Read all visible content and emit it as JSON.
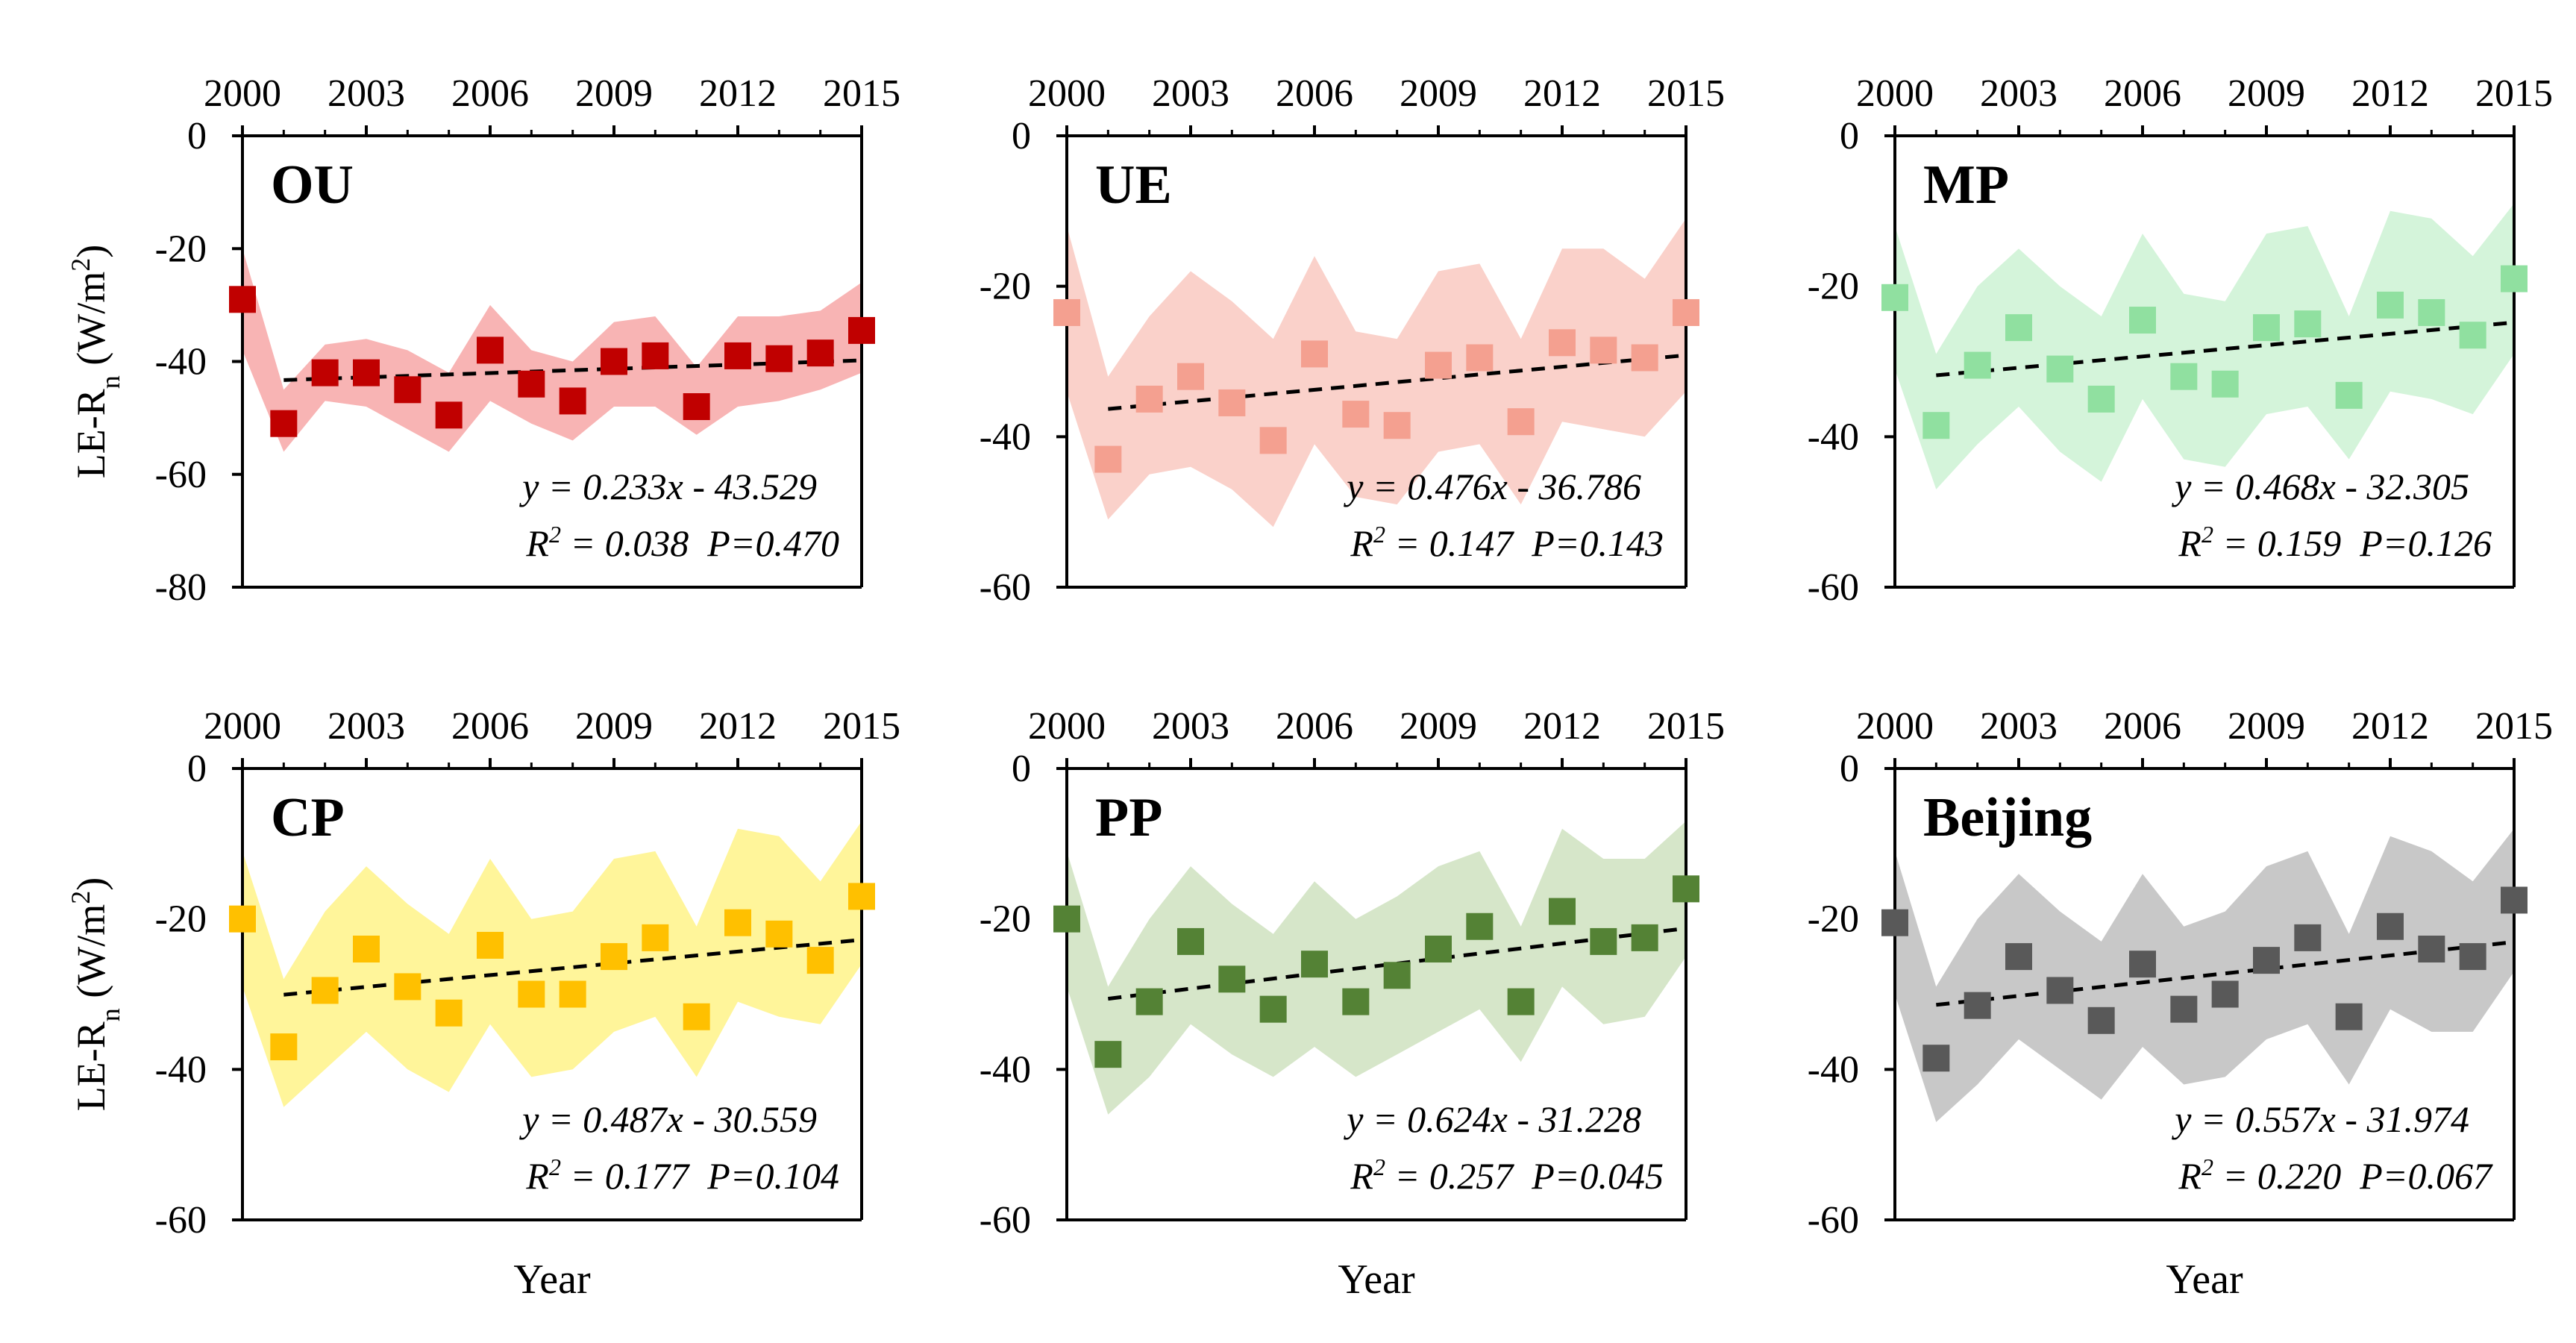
{
  "chart_data": [
    {
      "type": "scatter",
      "title": "OU",
      "color": "#C00000",
      "band_color": "#F8B4B4",
      "x": [
        2000,
        2001,
        2002,
        2003,
        2004,
        2005,
        2006,
        2007,
        2008,
        2009,
        2010,
        2011,
        2012,
        2013,
        2014,
        2015
      ],
      "values": [
        -29,
        -51,
        -42,
        -42,
        -45,
        -49.5,
        -38,
        -44,
        -47,
        -40,
        -39,
        -48,
        -39,
        -39.5,
        -38.5,
        -34.5
      ],
      "band_upper": [
        -20,
        -45,
        -37,
        -36,
        -38,
        -42,
        -30,
        -38,
        -40,
        -33,
        -32,
        -41,
        -32,
        -32,
        -31,
        -26
      ],
      "band_lower": [
        -38,
        -56,
        -47,
        -48,
        -52,
        -56,
        -47,
        -51,
        -54,
        -48,
        -48,
        -53,
        -48,
        -47,
        -45,
        -42
      ],
      "trend": {
        "slope": 0.233,
        "intercept": -43.529
      },
      "equation": "y = 0.233x - 43.529",
      "r2_label": "R",
      "r2_sup": "2",
      "r2_value": " = 0.038",
      "p_value": "P=0.470",
      "xlabel": "",
      "ylabel": "LE-R",
      "ylabel_sub": "n",
      "ylabel_units": " (W/m",
      "ylabel_sup": "2",
      "ylabel_close": ")",
      "ylim": [
        -80,
        0
      ],
      "y_ticks": [
        "0",
        "-20",
        "-40",
        "-60",
        "-80"
      ],
      "x_ticks": [
        "2000",
        "2003",
        "2006",
        "2009",
        "2012",
        "2015"
      ]
    },
    {
      "type": "scatter",
      "title": "UE",
      "color": "#F4A090",
      "band_color": "#FAD1CA",
      "x": [
        2000,
        2001,
        2002,
        2003,
        2004,
        2005,
        2006,
        2007,
        2008,
        2009,
        2010,
        2011,
        2012,
        2013,
        2014,
        2015
      ],
      "values": [
        -23.5,
        -43,
        -35,
        -32,
        -35.5,
        -40.5,
        -29,
        -37,
        -38.5,
        -30.5,
        -29.5,
        -38,
        -27.5,
        -28.5,
        -29.5,
        -23.5
      ],
      "band_upper": [
        -12,
        -32,
        -24,
        -18,
        -22,
        -27,
        -16,
        -26,
        -27,
        -18,
        -17,
        -27,
        -15,
        -15,
        -19,
        -11
      ],
      "band_lower": [
        -34,
        -51,
        -45,
        -44,
        -47,
        -52,
        -41,
        -48,
        -49,
        -42,
        -41,
        -49,
        -38,
        -39,
        -40,
        -34
      ],
      "trend": {
        "slope": 0.476,
        "intercept": -36.786
      },
      "equation": "y = 0.476x - 36.786",
      "r2_label": "R",
      "r2_sup": "2",
      "r2_value": " = 0.147",
      "p_value": "P=0.143",
      "xlabel": "",
      "ylabel": "",
      "ylim": [
        -60,
        0
      ],
      "y_ticks": [
        "0",
        "-20",
        "-40",
        "-60"
      ],
      "x_ticks": [
        "2000",
        "2003",
        "2006",
        "2009",
        "2012",
        "2015"
      ]
    },
    {
      "type": "scatter",
      "title": "MP",
      "color": "#90E0A0",
      "band_color": "#D4F4DA",
      "x": [
        2000,
        2001,
        2002,
        2003,
        2004,
        2005,
        2006,
        2007,
        2008,
        2009,
        2010,
        2011,
        2012,
        2013,
        2014,
        2015
      ],
      "values": [
        -21.5,
        -38.5,
        -30.5,
        -25.5,
        -31,
        -35,
        -24.5,
        -32,
        -33,
        -25.5,
        -25,
        -34.5,
        -22.5,
        -23.5,
        -26.5,
        -19
      ],
      "band_upper": [
        -12,
        -29,
        -20,
        -15,
        -20,
        -24,
        -13,
        -21,
        -22,
        -13,
        -12,
        -24,
        -10,
        -11,
        -16,
        -9
      ],
      "band_lower": [
        -31,
        -47,
        -41,
        -36,
        -42,
        -46,
        -35,
        -43,
        -44,
        -37,
        -36,
        -43,
        -34,
        -35,
        -37,
        -29
      ],
      "trend": {
        "slope": 0.468,
        "intercept": -32.305
      },
      "equation": "y = 0.468x - 32.305",
      "r2_label": "R",
      "r2_sup": "2",
      "r2_value": " = 0.159",
      "p_value": "P=0.126",
      "xlabel": "",
      "ylabel": "",
      "ylim": [
        -60,
        0
      ],
      "y_ticks": [
        "0",
        "-20",
        "-40",
        "-60"
      ],
      "x_ticks": [
        "2000",
        "2003",
        "2006",
        "2009",
        "2012",
        "2015"
      ]
    },
    {
      "type": "scatter",
      "title": "CP",
      "color": "#FFC000",
      "band_color": "#FFF59A",
      "x": [
        2000,
        2001,
        2002,
        2003,
        2004,
        2005,
        2006,
        2007,
        2008,
        2009,
        2010,
        2011,
        2012,
        2013,
        2014,
        2015
      ],
      "values": [
        -20,
        -37,
        -29.5,
        -24,
        -29,
        -32.5,
        -23.5,
        -30,
        -30,
        -25,
        -22.5,
        -33,
        -20.5,
        -22,
        -25.5,
        -17
      ],
      "band_upper": [
        -11,
        -28,
        -19,
        -13,
        -18,
        -22,
        -12,
        -20,
        -19,
        -12,
        -11,
        -21,
        -8,
        -9,
        -15,
        -7
      ],
      "band_lower": [
        -29,
        -45,
        -40,
        -35,
        -40,
        -43,
        -34,
        -41,
        -40,
        -35,
        -33,
        -41,
        -31,
        -33,
        -34,
        -26
      ],
      "trend": {
        "slope": 0.487,
        "intercept": -30.559
      },
      "equation": "y = 0.487x - 30.559",
      "r2_label": "R",
      "r2_sup": "2",
      "r2_value": " = 0.177",
      "p_value": "P=0.104",
      "xlabel": "Year",
      "ylabel": "LE-R",
      "ylabel_sub": "n",
      "ylabel_units": " (W/m",
      "ylabel_sup": "2",
      "ylabel_close": ")",
      "ylim": [
        -60,
        0
      ],
      "y_ticks": [
        "0",
        "-20",
        "-40",
        "-60"
      ],
      "x_ticks": [
        "2000",
        "2003",
        "2006",
        "2009",
        "2012",
        "2015"
      ]
    },
    {
      "type": "scatter",
      "title": "PP",
      "color": "#548235",
      "band_color": "#D6E6C9",
      "x": [
        2000,
        2001,
        2002,
        2003,
        2004,
        2005,
        2006,
        2007,
        2008,
        2009,
        2010,
        2011,
        2012,
        2013,
        2014,
        2015
      ],
      "values": [
        -20,
        -38,
        -31,
        -23,
        -28,
        -32,
        -26,
        -31,
        -27.5,
        -24,
        -21,
        -31,
        -19,
        -23,
        -22.5,
        -16
      ],
      "band_upper": [
        -11,
        -29,
        -20,
        -13,
        -18,
        -22,
        -15,
        -20,
        -17,
        -13,
        -11,
        -21,
        -8,
        -12,
        -12,
        -7
      ],
      "band_lower": [
        -29,
        -46,
        -41,
        -34,
        -38,
        -41,
        -37,
        -41,
        -38,
        -35,
        -32,
        -39,
        -29,
        -34,
        -33,
        -25
      ],
      "trend": {
        "slope": 0.624,
        "intercept": -31.228
      },
      "equation": "y = 0.624x - 31.228",
      "r2_label": "R",
      "r2_sup": "2",
      "r2_value": " = 0.257",
      "p_value": "P=0.045",
      "xlabel": "Year",
      "ylabel": "",
      "ylim": [
        -60,
        0
      ],
      "y_ticks": [
        "0",
        "-20",
        "-40",
        "-60"
      ],
      "x_ticks": [
        "2000",
        "2003",
        "2006",
        "2009",
        "2012",
        "2015"
      ]
    },
    {
      "type": "scatter",
      "title": "Beijing",
      "color": "#595959",
      "band_color": "#C8C8C8",
      "x": [
        2000,
        2001,
        2002,
        2003,
        2004,
        2005,
        2006,
        2007,
        2008,
        2009,
        2010,
        2011,
        2012,
        2013,
        2014,
        2015
      ],
      "values": [
        -20.5,
        -38.5,
        -31.5,
        -25,
        -29.5,
        -33.5,
        -26,
        -32,
        -30,
        -25.5,
        -22.5,
        -33,
        -21,
        -24,
        -25,
        -17.5
      ],
      "band_upper": [
        -11,
        -29,
        -20,
        -14,
        -19,
        -23,
        -14,
        -21,
        -19,
        -13,
        -11,
        -22,
        -9,
        -11,
        -15,
        -8
      ],
      "band_lower": [
        -30,
        -47,
        -42,
        -36,
        -40,
        -44,
        -37,
        -42,
        -41,
        -36,
        -34,
        -42,
        -32,
        -35,
        -35,
        -27
      ],
      "trend": {
        "slope": 0.557,
        "intercept": -31.974
      },
      "equation": "y = 0.557x - 31.974",
      "r2_label": "R",
      "r2_sup": "2",
      "r2_value": " = 0.220",
      "p_value": "P=0.067",
      "xlabel": "Year",
      "ylabel": "",
      "ylim": [
        -60,
        0
      ],
      "y_ticks": [
        "0",
        "-20",
        "-40",
        "-60"
      ],
      "x_ticks": [
        "2000",
        "2003",
        "2006",
        "2009",
        "2012",
        "2015"
      ]
    }
  ]
}
